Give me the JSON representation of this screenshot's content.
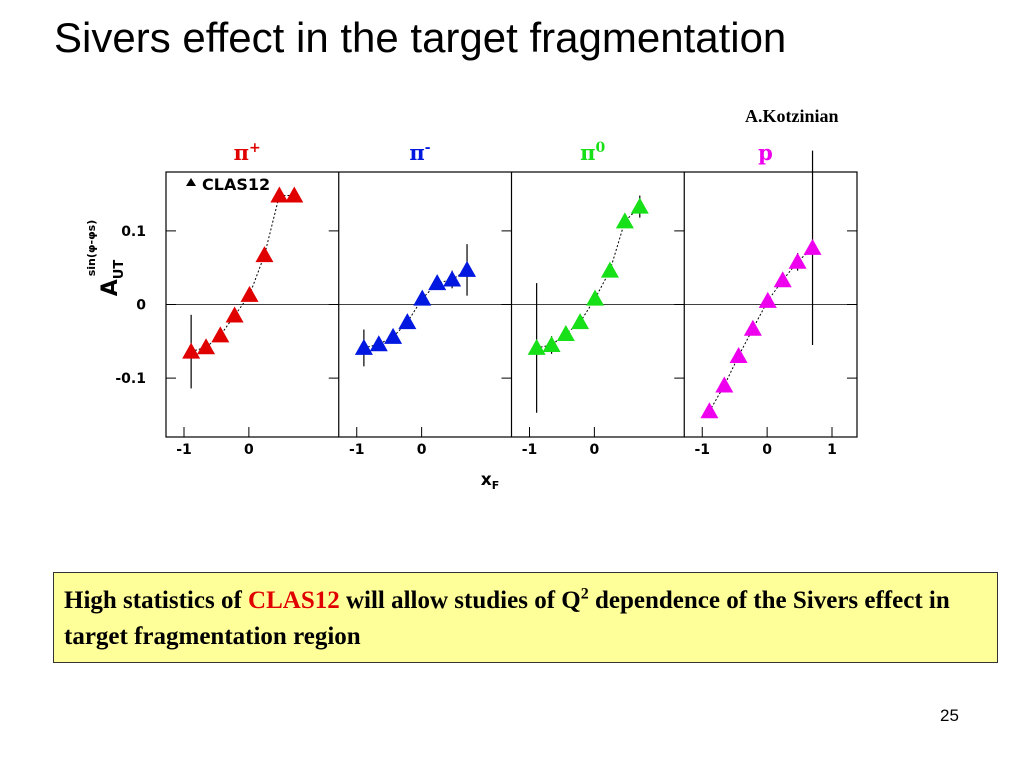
{
  "slide": {
    "title": "Sivers effect in the target fragmentation",
    "author": "A.Kotzinian",
    "page_number": "25"
  },
  "note": {
    "part1": "High statistics of ",
    "highlight": "CLAS12",
    "part2": " will allow studies of Q",
    "sup": "2",
    "part3": " dependence of the Sivers effect in target fragmentation region"
  },
  "colors": {
    "pi_plus": "#e00000",
    "pi_minus": "#0018e0",
    "pi_zero": "#18e018",
    "proton": "#ee00ee",
    "note_background": "#ffff99",
    "highlight": "#e00000"
  },
  "chart_data": {
    "type": "scatter",
    "legend": {
      "label": "CLAS12",
      "marker": "triangle",
      "position": "top-left"
    },
    "xlabel_main": "x",
    "xlabel_sub": "F",
    "ylabel_main": "A",
    "ylabel_sub": "UT",
    "ylabel_sup": "sin(φ-φs)",
    "ylim": [
      -0.18,
      0.18
    ],
    "y_ticks": [
      {
        "value": 0.1,
        "label": "0.1"
      },
      {
        "value": 0,
        "label": "0"
      },
      {
        "value": -0.1,
        "label": "-0.1"
      }
    ],
    "zero_line": true,
    "panels": [
      {
        "name": "π",
        "charge": "+",
        "color_key": "pi_plus",
        "xlim": [
          -1,
          1
        ],
        "x_ticks": [
          {
            "value": -1,
            "label": "-1"
          },
          {
            "value": 0,
            "label": "0"
          }
        ],
        "points": [
          {
            "x": -0.89,
            "y": -0.064,
            "err": 0.05
          },
          {
            "x": -0.66,
            "y": -0.058,
            "err": 0.006
          },
          {
            "x": -0.44,
            "y": -0.042,
            "err": 0.006
          },
          {
            "x": -0.22,
            "y": -0.015,
            "err": 0.005
          },
          {
            "x": 0.01,
            "y": 0.013,
            "err": 0.005
          },
          {
            "x": 0.24,
            "y": 0.067,
            "err": 0.006
          },
          {
            "x": 0.47,
            "y": 0.148,
            "err": 0.008
          },
          {
            "x": 0.7,
            "y": 0.148,
            "err": 0.008
          }
        ]
      },
      {
        "name": "π",
        "charge": "-",
        "color_key": "pi_minus",
        "xlim": [
          -1,
          1
        ],
        "x_ticks": [
          {
            "value": -1,
            "label": "-1"
          },
          {
            "value": 0,
            "label": "0"
          }
        ],
        "points": [
          {
            "x": -0.89,
            "y": -0.059,
            "err": 0.025
          },
          {
            "x": -0.66,
            "y": -0.054,
            "err": 0.005
          },
          {
            "x": -0.44,
            "y": -0.044,
            "err": 0.005
          },
          {
            "x": -0.22,
            "y": -0.024,
            "err": 0.005
          },
          {
            "x": 0.01,
            "y": 0.008,
            "err": 0.006
          },
          {
            "x": 0.24,
            "y": 0.029,
            "err": 0.006
          },
          {
            "x": 0.47,
            "y": 0.034,
            "err": 0.012
          },
          {
            "x": 0.7,
            "y": 0.047,
            "err": 0.035
          }
        ]
      },
      {
        "name": "π",
        "charge": "0",
        "color_key": "pi_zero",
        "xlim": [
          -1,
          1
        ],
        "x_ticks": [
          {
            "value": -1,
            "label": "-1"
          },
          {
            "value": 0,
            "label": "0"
          }
        ],
        "points": [
          {
            "x": -0.89,
            "y": -0.059,
            "err": 0.088
          },
          {
            "x": -0.66,
            "y": -0.055,
            "err": 0.012
          },
          {
            "x": -0.44,
            "y": -0.04,
            "err": 0.005
          },
          {
            "x": -0.22,
            "y": -0.024,
            "err": 0.005
          },
          {
            "x": 0.01,
            "y": 0.008,
            "err": 0.005
          },
          {
            "x": 0.24,
            "y": 0.046,
            "err": 0.006
          },
          {
            "x": 0.47,
            "y": 0.113,
            "err": 0.008
          },
          {
            "x": 0.7,
            "y": 0.133,
            "err": 0.015
          }
        ]
      },
      {
        "name": "p",
        "charge": "",
        "color_key": "proton",
        "xlim": [
          -1,
          1
        ],
        "x_ticks": [
          {
            "value": -1,
            "label": "-1"
          },
          {
            "value": 0,
            "label": "0"
          },
          {
            "value": 1,
            "label": "1"
          }
        ],
        "points": [
          {
            "x": -0.89,
            "y": -0.145,
            "err": 0.006
          },
          {
            "x": -0.66,
            "y": -0.11,
            "err": 0.005
          },
          {
            "x": -0.44,
            "y": -0.07,
            "err": 0.005
          },
          {
            "x": -0.22,
            "y": -0.033,
            "err": 0.005
          },
          {
            "x": 0.01,
            "y": 0.005,
            "err": 0.005
          },
          {
            "x": 0.24,
            "y": 0.033,
            "err": 0.006
          },
          {
            "x": 0.47,
            "y": 0.058,
            "err": 0.012
          },
          {
            "x": 0.7,
            "y": 0.077,
            "err": 0.132
          }
        ]
      }
    ]
  }
}
